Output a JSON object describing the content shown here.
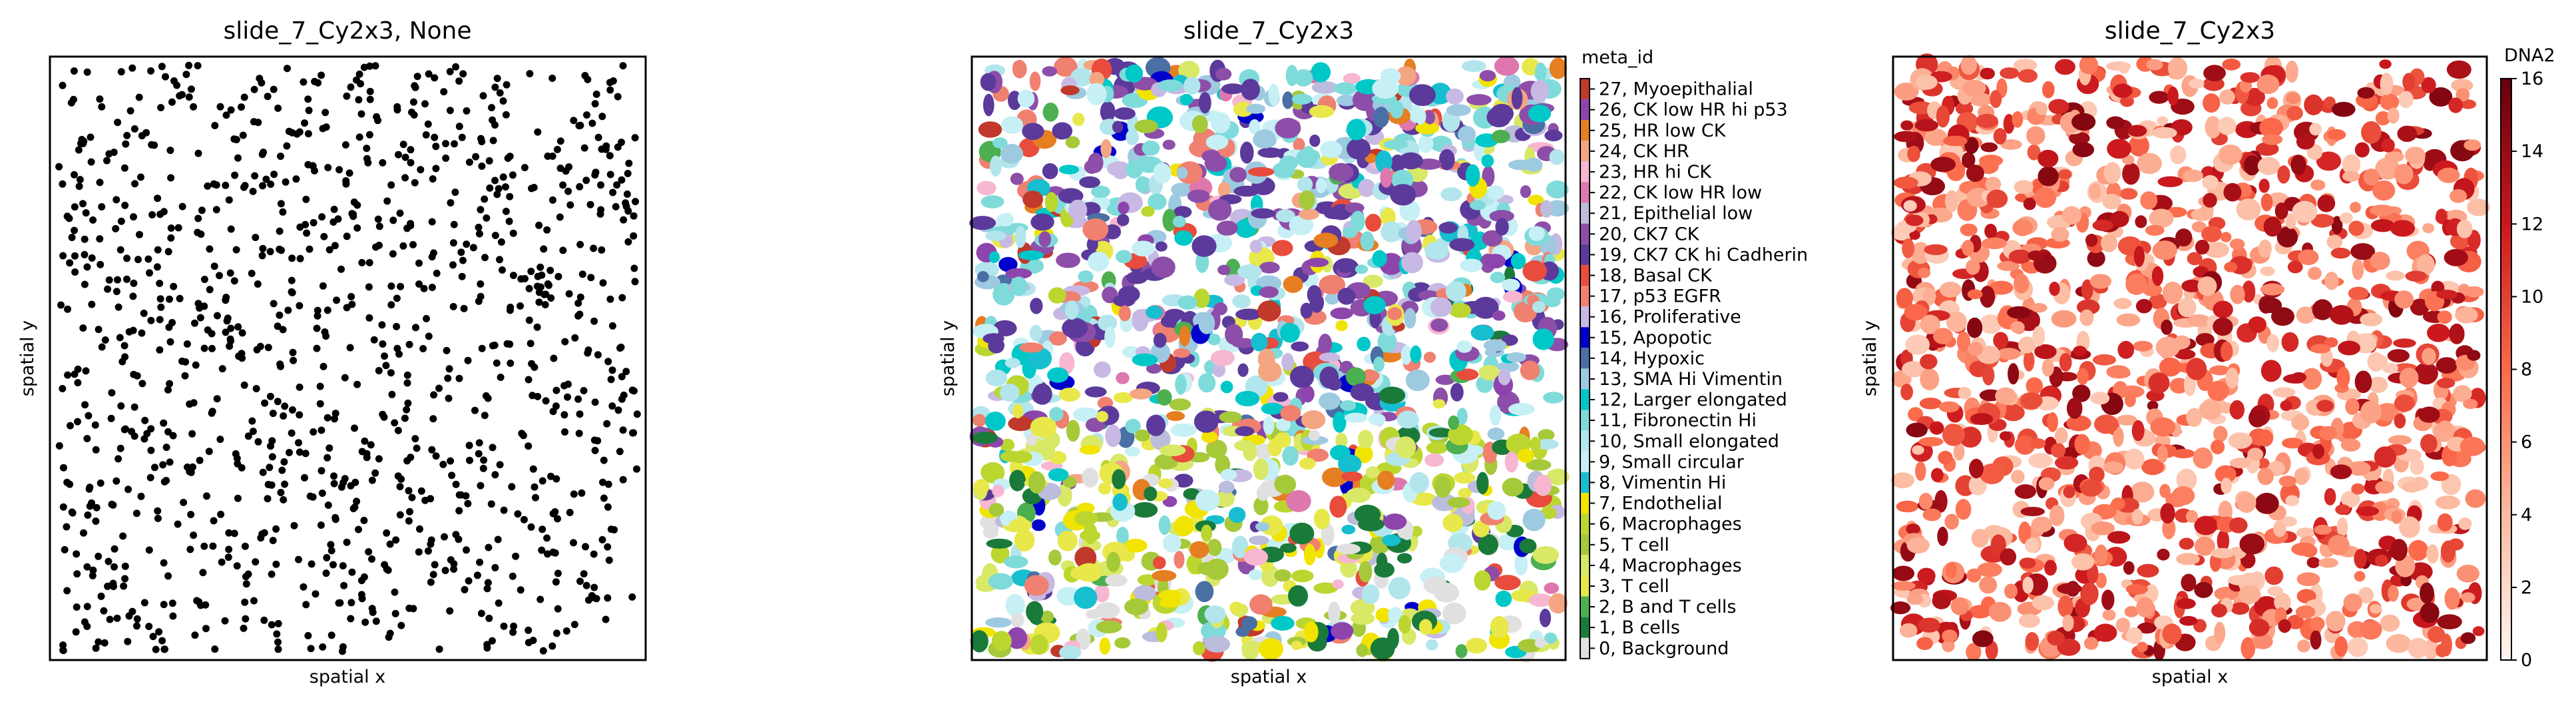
{
  "figure": {
    "panels": [
      {
        "title": "slide_7_Cy2x3, None",
        "xlabel": "spatial x",
        "ylabel": "spatial y"
      },
      {
        "title": "slide_7_Cy2x3",
        "xlabel": "spatial x",
        "ylabel": "spatial y",
        "legend_title": "meta_id"
      },
      {
        "title": "slide_7_Cy2x3",
        "xlabel": "spatial x",
        "ylabel": "spatial y",
        "colorbar_label": "DNA2"
      }
    ]
  },
  "chart_data": [
    {
      "type": "scatter",
      "title": "slide_7_Cy2x3, None",
      "xlabel": "spatial x",
      "ylabel": "spatial y",
      "point_color": "#000000",
      "grid": false,
      "ticks": false
    },
    {
      "type": "scatter",
      "title": "slide_7_Cy2x3",
      "xlabel": "spatial x",
      "ylabel": "spatial y",
      "legend_title": "meta_id",
      "legend_placement": "right",
      "grid": false,
      "ticks": false,
      "categories": [
        {
          "label": "27, Myoepithalial",
          "color": "#c0392b"
        },
        {
          "label": "26, CK low HR hi p53",
          "color": "#8e44ad"
        },
        {
          "label": "25, HR low CK",
          "color": "#e67e22"
        },
        {
          "label": "24, CK HR",
          "color": "#f4a582"
        },
        {
          "label": "23, HR hi CK",
          "color": "#f7b6d2"
        },
        {
          "label": "22, CK low HR low",
          "color": "#de77ae"
        },
        {
          "label": "21, Epithelial low",
          "color": "#bcbddc"
        },
        {
          "label": "20, CK7 CK",
          "color": "#8c4ea8"
        },
        {
          "label": "19, CK7 CK hi Cadherin",
          "color": "#5b3a9b"
        },
        {
          "label": "18, Basal CK",
          "color": "#e74c3c"
        },
        {
          "label": "17, p53 EGFR",
          "color": "#f08070"
        },
        {
          "label": "16, Proliferative",
          "color": "#c7b9e3"
        },
        {
          "label": "15, Apopotic",
          "color": "#0000cc"
        },
        {
          "label": "14, Hypoxic",
          "color": "#4a6fa5"
        },
        {
          "label": "13, SMA Hi Vimentin",
          "color": "#9ecae1"
        },
        {
          "label": "12, Larger elongated",
          "color": "#00c8c8"
        },
        {
          "label": "11, Fibronectin Hi",
          "color": "#7fdbda"
        },
        {
          "label": "10, Small elongated",
          "color": "#b3e5ec"
        },
        {
          "label": "9, Small circular",
          "color": "#c6f0f5"
        },
        {
          "label": "8, Vimentin Hi",
          "color": "#17becf"
        },
        {
          "label": "7, Endothelial",
          "color": "#f1e400"
        },
        {
          "label": "6, Macrophages",
          "color": "#bcd630"
        },
        {
          "label": "5, T cell",
          "color": "#a6c93a"
        },
        {
          "label": "4, Macrophages",
          "color": "#d9e866"
        },
        {
          "label": "3, T cell",
          "color": "#e8e84a"
        },
        {
          "label": "2, B and T cells",
          "color": "#4caf50"
        },
        {
          "label": "1, B cells",
          "color": "#1a7a3a"
        },
        {
          "label": "0, Background",
          "color": "#e0e0e0"
        }
      ]
    },
    {
      "type": "scatter",
      "title": "slide_7_Cy2x3",
      "xlabel": "spatial x",
      "ylabel": "spatial y",
      "colorbar_label": "DNA2",
      "colormap": "Reds",
      "colorbar_range": [
        0,
        16
      ],
      "colorbar_ticks": [
        "0",
        "2",
        "4",
        "6",
        "8",
        "10",
        "12",
        "14",
        "16"
      ],
      "grid": false,
      "ticks": false
    }
  ]
}
